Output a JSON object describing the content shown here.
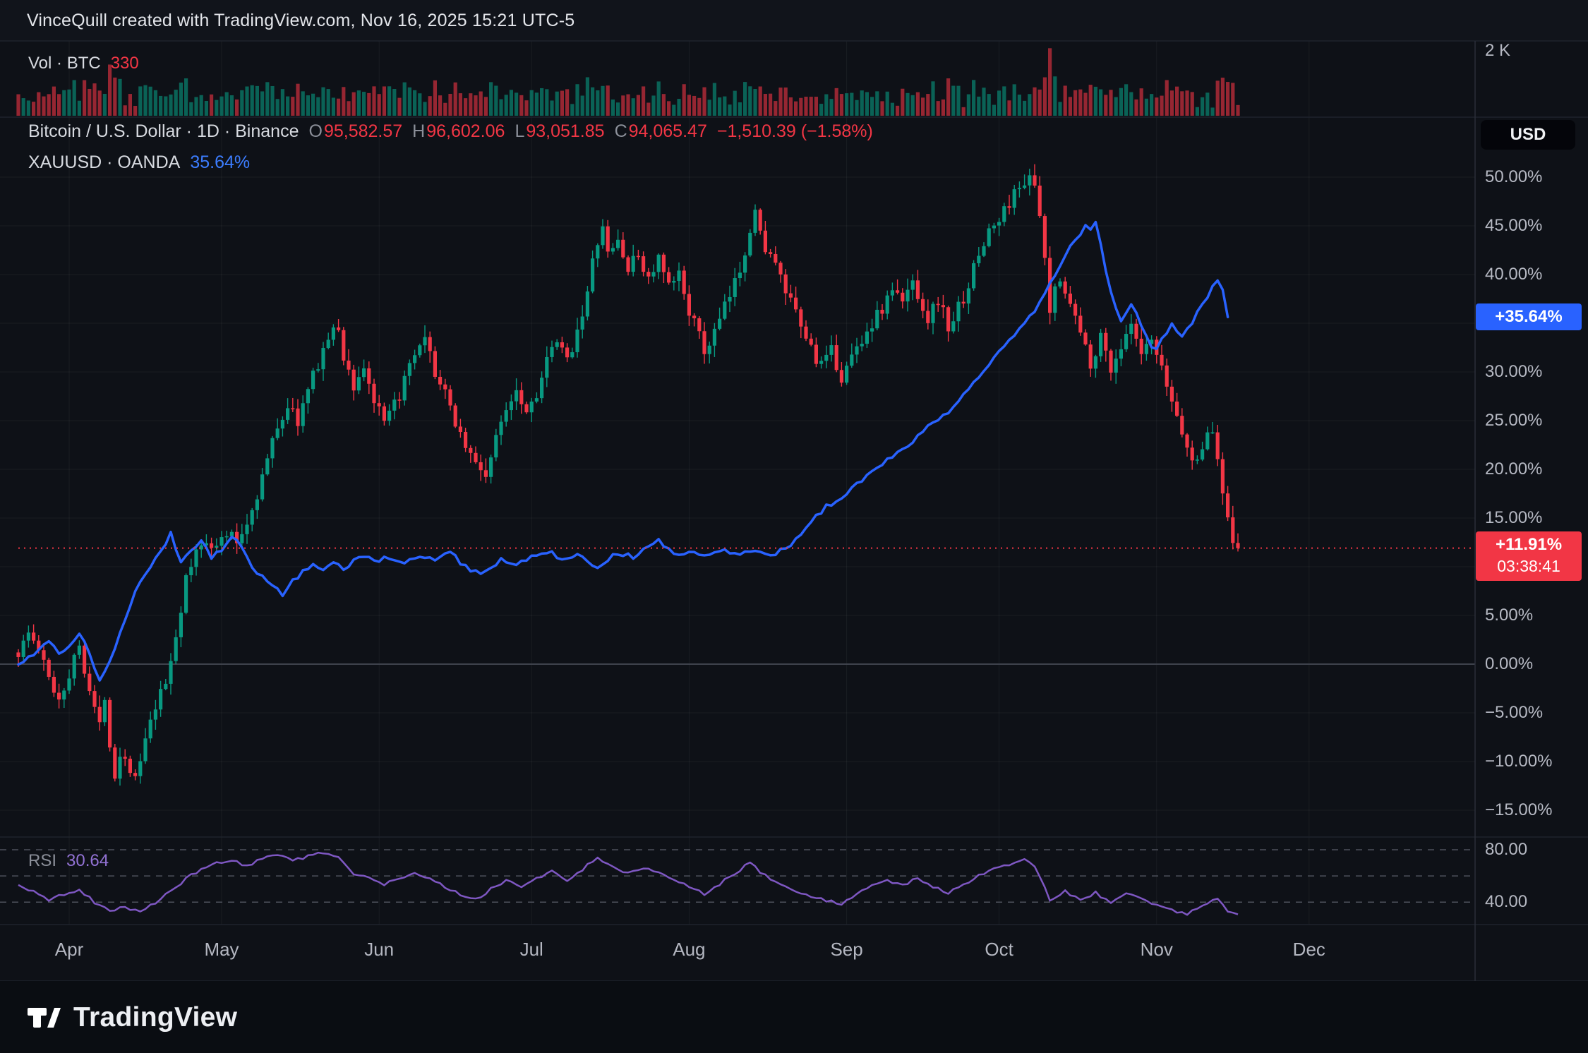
{
  "header": {
    "title": "VinceQuill created with TradingView.com, Nov 16, 2025 15:21 UTC-5"
  },
  "volume_pane": {
    "legend": {
      "label": "Vol · BTC",
      "value": "330"
    },
    "scale_label": "2 K"
  },
  "main_pane": {
    "legend_line1": {
      "symbol": "Bitcoin / U.S. Dollar · 1D · Binance",
      "open_label": "O",
      "open": "95,582.57",
      "high_label": "H",
      "high": "96,602.06",
      "low_label": "L",
      "low": "93,051.85",
      "close_label": "C",
      "close": "94,065.47",
      "change": "−1,510.39 (−1.58%)"
    },
    "legend_line2": {
      "symbol": "XAUUSD · OANDA",
      "value": "35.64%"
    },
    "currency_button": "USD",
    "price_scale_labels": [
      {
        "label": "50.00%",
        "value": 50
      },
      {
        "label": "45.00%",
        "value": 45
      },
      {
        "label": "40.00%",
        "value": 40
      },
      {
        "label": "30.00%",
        "value": 30
      },
      {
        "label": "25.00%",
        "value": 25
      },
      {
        "label": "20.00%",
        "value": 20
      },
      {
        "label": "15.00%",
        "value": 15
      },
      {
        "label": "5.00%",
        "value": 5
      },
      {
        "label": "0.00%",
        "value": 0
      },
      {
        "label": "−5.00%",
        "value": -5
      },
      {
        "label": "−10.00%",
        "value": -10
      },
      {
        "label": "−15.00%",
        "value": -15
      }
    ],
    "gold_badge": {
      "label": "+35.64%",
      "value": 35.64,
      "color": "#2962ff"
    },
    "btc_badge": {
      "label": "+11.91%",
      "countdown": "03:38:41",
      "value": 11.91,
      "color": "#f23645"
    }
  },
  "rsi_pane": {
    "legend": {
      "label": "RSI",
      "value": "30.64"
    },
    "scale_labels": [
      {
        "label": "80.00",
        "value": 80
      },
      {
        "label": "40.00",
        "value": 40
      }
    ],
    "bands": [
      80,
      60,
      40
    ]
  },
  "time_axis": {
    "months": [
      {
        "label": "Apr",
        "day": 10
      },
      {
        "label": "May",
        "day": 40
      },
      {
        "label": "Jun",
        "day": 71
      },
      {
        "label": "Jul",
        "day": 101
      },
      {
        "label": "Aug",
        "day": 132
      },
      {
        "label": "Sep",
        "day": 163
      },
      {
        "label": "Oct",
        "day": 193
      },
      {
        "label": "Nov",
        "day": 224
      },
      {
        "label": "Dec",
        "day": 254
      }
    ]
  },
  "footer": {
    "brand": "TradingView"
  },
  "colors": {
    "up": "#089981",
    "down": "#f23645",
    "gold_line": "#2962ff",
    "rsi_line": "#7e57c2",
    "grid": "rgba(255,255,255,0.05)",
    "zero_line": "#3f434d",
    "separator": "#1f232d",
    "scale_text": "#b6b9c3"
  },
  "chart_data": {
    "type": "candlestick",
    "title": "Bitcoin / U.S. Dollar · 1D · Binance with XAUUSD · OANDA overlay, percent-change scale",
    "x_unit": "daily bars; day 0 ≈ Mar 22 2025, last bar = Nov 16 2025",
    "y_unit": "percent change",
    "ylim_main": [
      -17.5,
      56
    ],
    "days_total": 241,
    "series": [
      {
        "name": "BTCUSD candles (% change)",
        "type": "candlestick",
        "keyframes": "btc_pct_keyframes",
        "last_close_pct": 11.91
      },
      {
        "name": "XAUUSD line (% change)",
        "type": "line",
        "color": "#2962ff",
        "keyframes": "gold_pct_keyframes",
        "last_value_pct": 35.64
      },
      {
        "name": "RSI",
        "type": "line",
        "color": "#7e57c2",
        "keyframes": "rsi_keyframes",
        "last_value": 30.64
      },
      {
        "name": "Volume BTC",
        "type": "bar",
        "last_value": 330,
        "scale_max": 2000,
        "scale_max_label": "2 K"
      }
    ],
    "btc_pct_keyframes": [
      [
        0,
        1.2
      ],
      [
        2,
        3.2
      ],
      [
        4,
        1.5
      ],
      [
        6,
        -1.5
      ],
      [
        8,
        -3.5
      ],
      [
        10,
        -1
      ],
      [
        12,
        2
      ],
      [
        14,
        -2.5
      ],
      [
        16,
        -6.5
      ],
      [
        17,
        -3
      ],
      [
        18,
        -8
      ],
      [
        19,
        -11.5
      ],
      [
        20,
        -9
      ],
      [
        22,
        -10.5
      ],
      [
        23,
        -12
      ],
      [
        25,
        -8
      ],
      [
        27,
        -4.5
      ],
      [
        29,
        -2
      ],
      [
        31,
        3
      ],
      [
        33,
        8.5
      ],
      [
        35,
        11.5
      ],
      [
        37,
        13
      ],
      [
        39,
        12
      ],
      [
        41,
        13.5
      ],
      [
        43,
        12.5
      ],
      [
        45,
        14.5
      ],
      [
        47,
        17.5
      ],
      [
        49,
        21
      ],
      [
        51,
        24.5
      ],
      [
        53,
        26.5
      ],
      [
        55,
        25
      ],
      [
        57,
        28
      ],
      [
        59,
        31
      ],
      [
        61,
        33.5
      ],
      [
        63,
        34.5
      ],
      [
        64,
        31.5
      ],
      [
        66,
        28.5
      ],
      [
        68,
        30.5
      ],
      [
        70,
        27
      ],
      [
        72,
        24.5
      ],
      [
        74,
        26.5
      ],
      [
        76,
        29
      ],
      [
        78,
        31.5
      ],
      [
        80,
        33
      ],
      [
        82,
        30
      ],
      [
        84,
        27.5
      ],
      [
        86,
        25
      ],
      [
        88,
        22.5
      ],
      [
        90,
        20.5
      ],
      [
        92,
        19.5
      ],
      [
        94,
        23
      ],
      [
        96,
        26.5
      ],
      [
        98,
        28.5
      ],
      [
        100,
        26
      ],
      [
        102,
        28
      ],
      [
        104,
        31
      ],
      [
        106,
        33
      ],
      [
        108,
        31
      ],
      [
        110,
        34.5
      ],
      [
        112,
        38
      ],
      [
        113,
        41
      ],
      [
        114,
        43.5
      ],
      [
        115,
        44.5
      ],
      [
        116,
        42
      ],
      [
        118,
        43.5
      ],
      [
        120,
        40.5
      ],
      [
        122,
        42
      ],
      [
        124,
        39.5
      ],
      [
        126,
        41.5
      ],
      [
        128,
        38.5
      ],
      [
        130,
        40
      ],
      [
        132,
        36.5
      ],
      [
        134,
        33.5
      ],
      [
        135,
        32
      ],
      [
        137,
        34
      ],
      [
        139,
        36.5
      ],
      [
        141,
        39
      ],
      [
        143,
        42.5
      ],
      [
        144,
        45
      ],
      [
        145,
        46.5
      ],
      [
        146,
        44
      ],
      [
        148,
        42
      ],
      [
        150,
        39.5
      ],
      [
        152,
        37
      ],
      [
        154,
        34.5
      ],
      [
        156,
        32.5
      ],
      [
        158,
        30.5
      ],
      [
        160,
        32
      ],
      [
        162,
        29.5
      ],
      [
        164,
        31.5
      ],
      [
        166,
        33.5
      ],
      [
        168,
        35
      ],
      [
        170,
        36.5
      ],
      [
        172,
        38.5
      ],
      [
        174,
        37
      ],
      [
        176,
        39.5
      ],
      [
        177,
        38
      ],
      [
        179,
        35.5
      ],
      [
        181,
        37.5
      ],
      [
        183,
        34.5
      ],
      [
        185,
        36.5
      ],
      [
        187,
        39
      ],
      [
        189,
        42
      ],
      [
        191,
        44.5
      ],
      [
        193,
        45.5
      ],
      [
        195,
        47.5
      ],
      [
        197,
        49
      ],
      [
        199,
        50.5
      ],
      [
        200,
        48.5
      ],
      [
        201,
        46
      ],
      [
        203,
        36
      ],
      [
        204,
        38.5
      ],
      [
        205,
        40
      ],
      [
        207,
        37
      ],
      [
        209,
        34
      ],
      [
        211,
        31
      ],
      [
        213,
        33.5
      ],
      [
        215,
        30.5
      ],
      [
        217,
        32.5
      ],
      [
        219,
        34.5
      ],
      [
        221,
        31.5
      ],
      [
        223,
        33
      ],
      [
        225,
        30
      ],
      [
        227,
        27
      ],
      [
        229,
        24
      ],
      [
        231,
        20.5
      ],
      [
        233,
        22.5
      ],
      [
        235,
        24
      ],
      [
        236,
        21
      ],
      [
        237,
        18
      ],
      [
        238,
        15.5
      ],
      [
        239,
        13
      ],
      [
        240,
        11.91
      ]
    ],
    "gold_pct_keyframes": [
      [
        0,
        0
      ],
      [
        2,
        0.8
      ],
      [
        4,
        1.5
      ],
      [
        6,
        2.5
      ],
      [
        8,
        1
      ],
      [
        10,
        2
      ],
      [
        12,
        3.2
      ],
      [
        14,
        1
      ],
      [
        15,
        -0.5
      ],
      [
        16,
        -1.8
      ],
      [
        18,
        0.5
      ],
      [
        20,
        3
      ],
      [
        22,
        6
      ],
      [
        24,
        8.5
      ],
      [
        26,
        10
      ],
      [
        28,
        11.5
      ],
      [
        30,
        13.5
      ],
      [
        31,
        12
      ],
      [
        32,
        10.5
      ],
      [
        34,
        11.5
      ],
      [
        36,
        12.5
      ],
      [
        38,
        11
      ],
      [
        40,
        11.8
      ],
      [
        42,
        13
      ],
      [
        44,
        12
      ],
      [
        46,
        10
      ],
      [
        48,
        9
      ],
      [
        50,
        8
      ],
      [
        52,
        7.2
      ],
      [
        54,
        8.5
      ],
      [
        56,
        9.5
      ],
      [
        58,
        10.2
      ],
      [
        60,
        9.6
      ],
      [
        62,
        10.4
      ],
      [
        64,
        9.8
      ],
      [
        66,
        10.6
      ],
      [
        68,
        11.2
      ],
      [
        70,
        10.4
      ],
      [
        73,
        11
      ],
      [
        76,
        10.2
      ],
      [
        79,
        11.2
      ],
      [
        82,
        10.6
      ],
      [
        85,
        11.4
      ],
      [
        88,
        10
      ],
      [
        91,
        9.2
      ],
      [
        93,
        10
      ],
      [
        95,
        10.8
      ],
      [
        98,
        10.2
      ],
      [
        101,
        11
      ],
      [
        104,
        11.6
      ],
      [
        107,
        10.8
      ],
      [
        110,
        11.4
      ],
      [
        112,
        10.4
      ],
      [
        114,
        9.8
      ],
      [
        116,
        10.8
      ],
      [
        118,
        11.4
      ],
      [
        121,
        11
      ],
      [
        124,
        12.2
      ],
      [
        126,
        12.8
      ],
      [
        128,
        11.8
      ],
      [
        130,
        11.2
      ],
      [
        133,
        11.6
      ],
      [
        136,
        11
      ],
      [
        139,
        11.8
      ],
      [
        142,
        11.2
      ],
      [
        145,
        11.6
      ],
      [
        148,
        11.2
      ],
      [
        151,
        11.8
      ],
      [
        153,
        12.8
      ],
      [
        155,
        14
      ],
      [
        157,
        15.2
      ],
      [
        159,
        16.2
      ],
      [
        161,
        16.8
      ],
      [
        163,
        17.4
      ],
      [
        165,
        18.4
      ],
      [
        167,
        19.4
      ],
      [
        169,
        20.2
      ],
      [
        171,
        21
      ],
      [
        173,
        21.8
      ],
      [
        175,
        22.4
      ],
      [
        177,
        23.4
      ],
      [
        179,
        24.4
      ],
      [
        181,
        25
      ],
      [
        183,
        25.8
      ],
      [
        185,
        27
      ],
      [
        187,
        28.2
      ],
      [
        189,
        29.4
      ],
      [
        191,
        30.6
      ],
      [
        193,
        32
      ],
      [
        195,
        33.2
      ],
      [
        197,
        34.4
      ],
      [
        199,
        35.6
      ],
      [
        201,
        37.2
      ],
      [
        203,
        39
      ],
      [
        205,
        41
      ],
      [
        207,
        42.8
      ],
      [
        209,
        44.2
      ],
      [
        210,
        45
      ],
      [
        211,
        44.4
      ],
      [
        212,
        45.2
      ],
      [
        213,
        43
      ],
      [
        214,
        40.5
      ],
      [
        215,
        38
      ],
      [
        216,
        36.5
      ],
      [
        217,
        35
      ],
      [
        218,
        36.2
      ],
      [
        219,
        37
      ],
      [
        220,
        36
      ],
      [
        221,
        34.8
      ],
      [
        222,
        33.6
      ],
      [
        223,
        32.6
      ],
      [
        224,
        32.2
      ],
      [
        225,
        33.2
      ],
      [
        226,
        34.2
      ],
      [
        227,
        35
      ],
      [
        228,
        34.2
      ],
      [
        229,
        33.6
      ],
      [
        230,
        34.4
      ],
      [
        231,
        35.2
      ],
      [
        232,
        36
      ],
      [
        233,
        36.8
      ],
      [
        234,
        37.6
      ],
      [
        235,
        38.6
      ],
      [
        236,
        39.6
      ],
      [
        237,
        38.4
      ],
      [
        238,
        35.64
      ]
    ],
    "rsi_keyframes": [
      [
        0,
        52
      ],
      [
        3,
        48
      ],
      [
        6,
        42
      ],
      [
        9,
        46
      ],
      [
        12,
        50
      ],
      [
        15,
        40
      ],
      [
        18,
        34
      ],
      [
        21,
        36
      ],
      [
        24,
        33
      ],
      [
        27,
        40
      ],
      [
        30,
        48
      ],
      [
        33,
        58
      ],
      [
        36,
        65
      ],
      [
        39,
        70
      ],
      [
        42,
        72
      ],
      [
        45,
        68
      ],
      [
        48,
        73
      ],
      [
        51,
        76
      ],
      [
        54,
        72
      ],
      [
        57,
        75
      ],
      [
        60,
        78
      ],
      [
        63,
        74
      ],
      [
        66,
        62
      ],
      [
        69,
        58
      ],
      [
        72,
        54
      ],
      [
        75,
        58
      ],
      [
        78,
        63
      ],
      [
        81,
        58
      ],
      [
        84,
        52
      ],
      [
        87,
        46
      ],
      [
        90,
        42
      ],
      [
        93,
        50
      ],
      [
        96,
        57
      ],
      [
        99,
        52
      ],
      [
        102,
        58
      ],
      [
        105,
        63
      ],
      [
        108,
        57
      ],
      [
        111,
        65
      ],
      [
        114,
        74
      ],
      [
        117,
        68
      ],
      [
        120,
        62
      ],
      [
        123,
        66
      ],
      [
        126,
        62
      ],
      [
        129,
        58
      ],
      [
        132,
        52
      ],
      [
        135,
        46
      ],
      [
        138,
        54
      ],
      [
        141,
        62
      ],
      [
        144,
        70
      ],
      [
        147,
        60
      ],
      [
        150,
        54
      ],
      [
        153,
        48
      ],
      [
        156,
        44
      ],
      [
        159,
        41
      ],
      [
        162,
        39
      ],
      [
        165,
        46
      ],
      [
        168,
        52
      ],
      [
        171,
        57
      ],
      [
        174,
        53
      ],
      [
        177,
        58
      ],
      [
        180,
        52
      ],
      [
        183,
        47
      ],
      [
        186,
        53
      ],
      [
        189,
        60
      ],
      [
        192,
        65
      ],
      [
        195,
        69
      ],
      [
        198,
        72
      ],
      [
        200,
        68
      ],
      [
        203,
        42
      ],
      [
        206,
        48
      ],
      [
        209,
        42
      ],
      [
        212,
        47
      ],
      [
        215,
        40
      ],
      [
        218,
        46
      ],
      [
        221,
        42
      ],
      [
        224,
        38
      ],
      [
        227,
        34
      ],
      [
        230,
        30
      ],
      [
        233,
        38
      ],
      [
        236,
        42
      ],
      [
        238,
        33
      ],
      [
        240,
        30.64
      ]
    ],
    "volume_profile": {
      "base": [
        220,
        740
      ],
      "body_multiplier": 180,
      "forced": {
        "203": 2080,
        "240": 330
      },
      "scale_max": 2000
    },
    "current_price_line_pct": 11.91
  }
}
